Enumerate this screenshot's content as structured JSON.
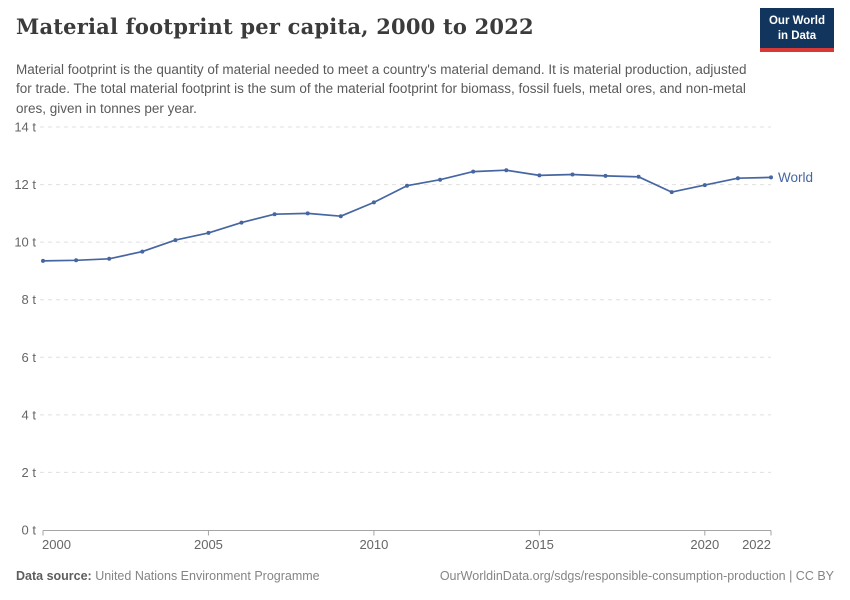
{
  "header": {
    "title": "Material footprint per capita, 2000 to 2022",
    "subtitle": "Material footprint is the quantity of material needed to meet a country's material demand. It is material production, adjusted for trade. The total material footprint is the sum of the material footprint for biomass, fossil fuels, metal ores, and non-metal ores, given in tonnes per year.",
    "logo_line1": "Our World",
    "logo_line2": "in Data"
  },
  "chart_data": {
    "type": "line",
    "title": "Material footprint per capita, 2000 to 2022",
    "xlabel": "",
    "ylabel": "",
    "x": [
      2000,
      2001,
      2002,
      2003,
      2004,
      2005,
      2006,
      2007,
      2008,
      2009,
      2010,
      2011,
      2012,
      2013,
      2014,
      2015,
      2016,
      2017,
      2018,
      2019,
      2020,
      2021,
      2022
    ],
    "series": [
      {
        "name": "World",
        "color": "#4666a2",
        "values": [
          9.35,
          9.37,
          9.42,
          9.67,
          10.07,
          10.32,
          10.68,
          10.97,
          11.0,
          10.9,
          11.38,
          11.96,
          12.17,
          12.45,
          12.5,
          12.32,
          12.35,
          12.3,
          12.27,
          11.74,
          11.98,
          12.22,
          12.25
        ]
      }
    ],
    "x_ticks": [
      2000,
      2005,
      2010,
      2015,
      2020,
      2022
    ],
    "y_ticks": [
      0,
      2,
      4,
      6,
      8,
      10,
      12,
      14
    ],
    "y_tick_suffix": " t",
    "xlim": [
      2000,
      2022
    ],
    "ylim": [
      0,
      14
    ],
    "grid": "horizontal-dashed",
    "legend": "end-of-line-label"
  },
  "footer": {
    "datasource_label": "Data source:",
    "datasource_value": " United Nations Environment Programme",
    "credit": "OurWorldinData.org/sdgs/responsible-consumption-production | CC BY"
  },
  "colors": {
    "line": "#4666a2",
    "grid": "#e0e0e0",
    "axis": "#a5a5a5",
    "axis_text": "#666666",
    "title": "#3b3b3b",
    "subtitle": "#5a5a5a",
    "footer": "#858585",
    "footer_label": "#5e5e5e",
    "logo_bg": "#12355e",
    "logo_accent": "#d73a36",
    "logo_text": "#ffffff"
  }
}
